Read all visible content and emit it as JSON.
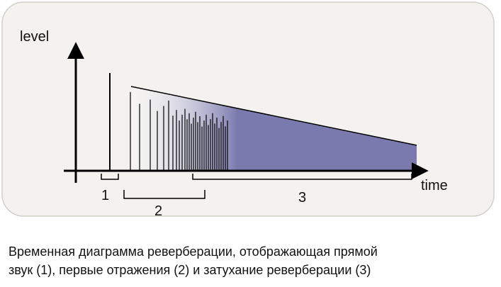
{
  "diagram": {
    "y_axis_label": "level",
    "x_axis_label": "time",
    "segments": [
      {
        "label": "1"
      },
      {
        "label": "2"
      },
      {
        "label": "3"
      }
    ]
  },
  "caption": {
    "lines": [
      "Временная диаграмма реверберации, отображающая прямой",
      "звук (1), первые отражения (2) и затухание реверберации (3)"
    ]
  }
}
